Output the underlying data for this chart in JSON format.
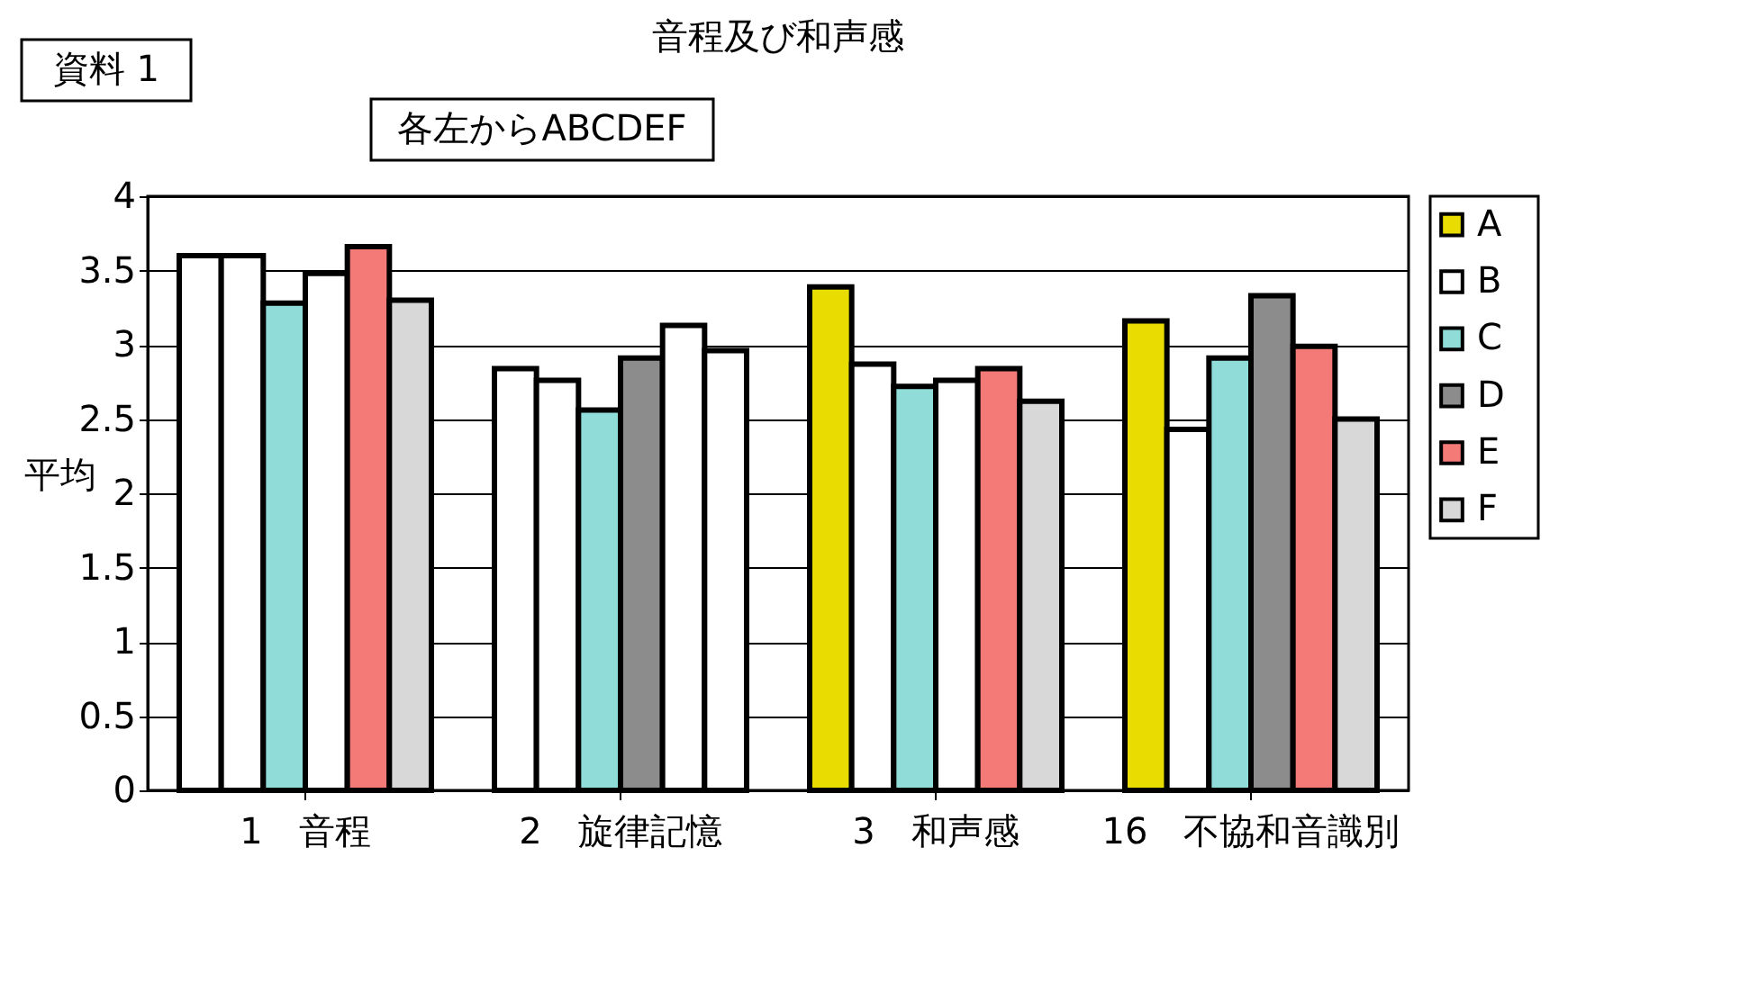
{
  "chart_data": {
    "type": "bar",
    "title": "音程及び和声感",
    "ylabel": "平均",
    "categories": [
      "1　音程",
      "2　旋律記憶",
      "3　和声感",
      "16　不協和音識別"
    ],
    "series": [
      {
        "name": "A",
        "color": "#e8dc00",
        "colors": [
          "#ffffff",
          "#ffffff",
          "#e8dc00",
          "#e8dc00"
        ],
        "values": [
          3.6,
          2.84,
          3.39,
          3.16
        ]
      },
      {
        "name": "B",
        "color": "#ffffff",
        "colors": [
          "#ffffff",
          "#ffffff",
          "#ffffff",
          "#ffffff"
        ],
        "values": [
          3.6,
          2.76,
          2.87,
          2.43
        ]
      },
      {
        "name": "C",
        "color": "#8fdcd8",
        "colors": [
          "#8fdcd8",
          "#8fdcd8",
          "#8fdcd8",
          "#8fdcd8"
        ],
        "values": [
          3.28,
          2.56,
          2.72,
          2.91
        ]
      },
      {
        "name": "D",
        "color": "#8c8c8c",
        "colors": [
          "#ffffff",
          "#8c8c8c",
          "#ffffff",
          "#8c8c8c"
        ],
        "values": [
          3.48,
          2.91,
          2.76,
          3.33
        ]
      },
      {
        "name": "E",
        "color": "#f47a78",
        "colors": [
          "#f47a78",
          "#ffffff",
          "#f47a78",
          "#f47a78"
        ],
        "values": [
          3.66,
          3.13,
          2.84,
          2.99
        ]
      },
      {
        "name": "F",
        "color": "#d8d8d8",
        "colors": [
          "#d8d8d8",
          "#ffffff",
          "#d8d8d8",
          "#d8d8d8"
        ],
        "values": [
          3.3,
          2.96,
          2.62,
          2.5
        ]
      }
    ],
    "ylim": [
      0,
      4
    ],
    "yticks": [
      0,
      0.5,
      1,
      1.5,
      2,
      2.5,
      3,
      3.5,
      4
    ],
    "grid": "y",
    "legend": "right",
    "annotations": [
      "資料 1",
      "各左からABCDEF"
    ]
  }
}
